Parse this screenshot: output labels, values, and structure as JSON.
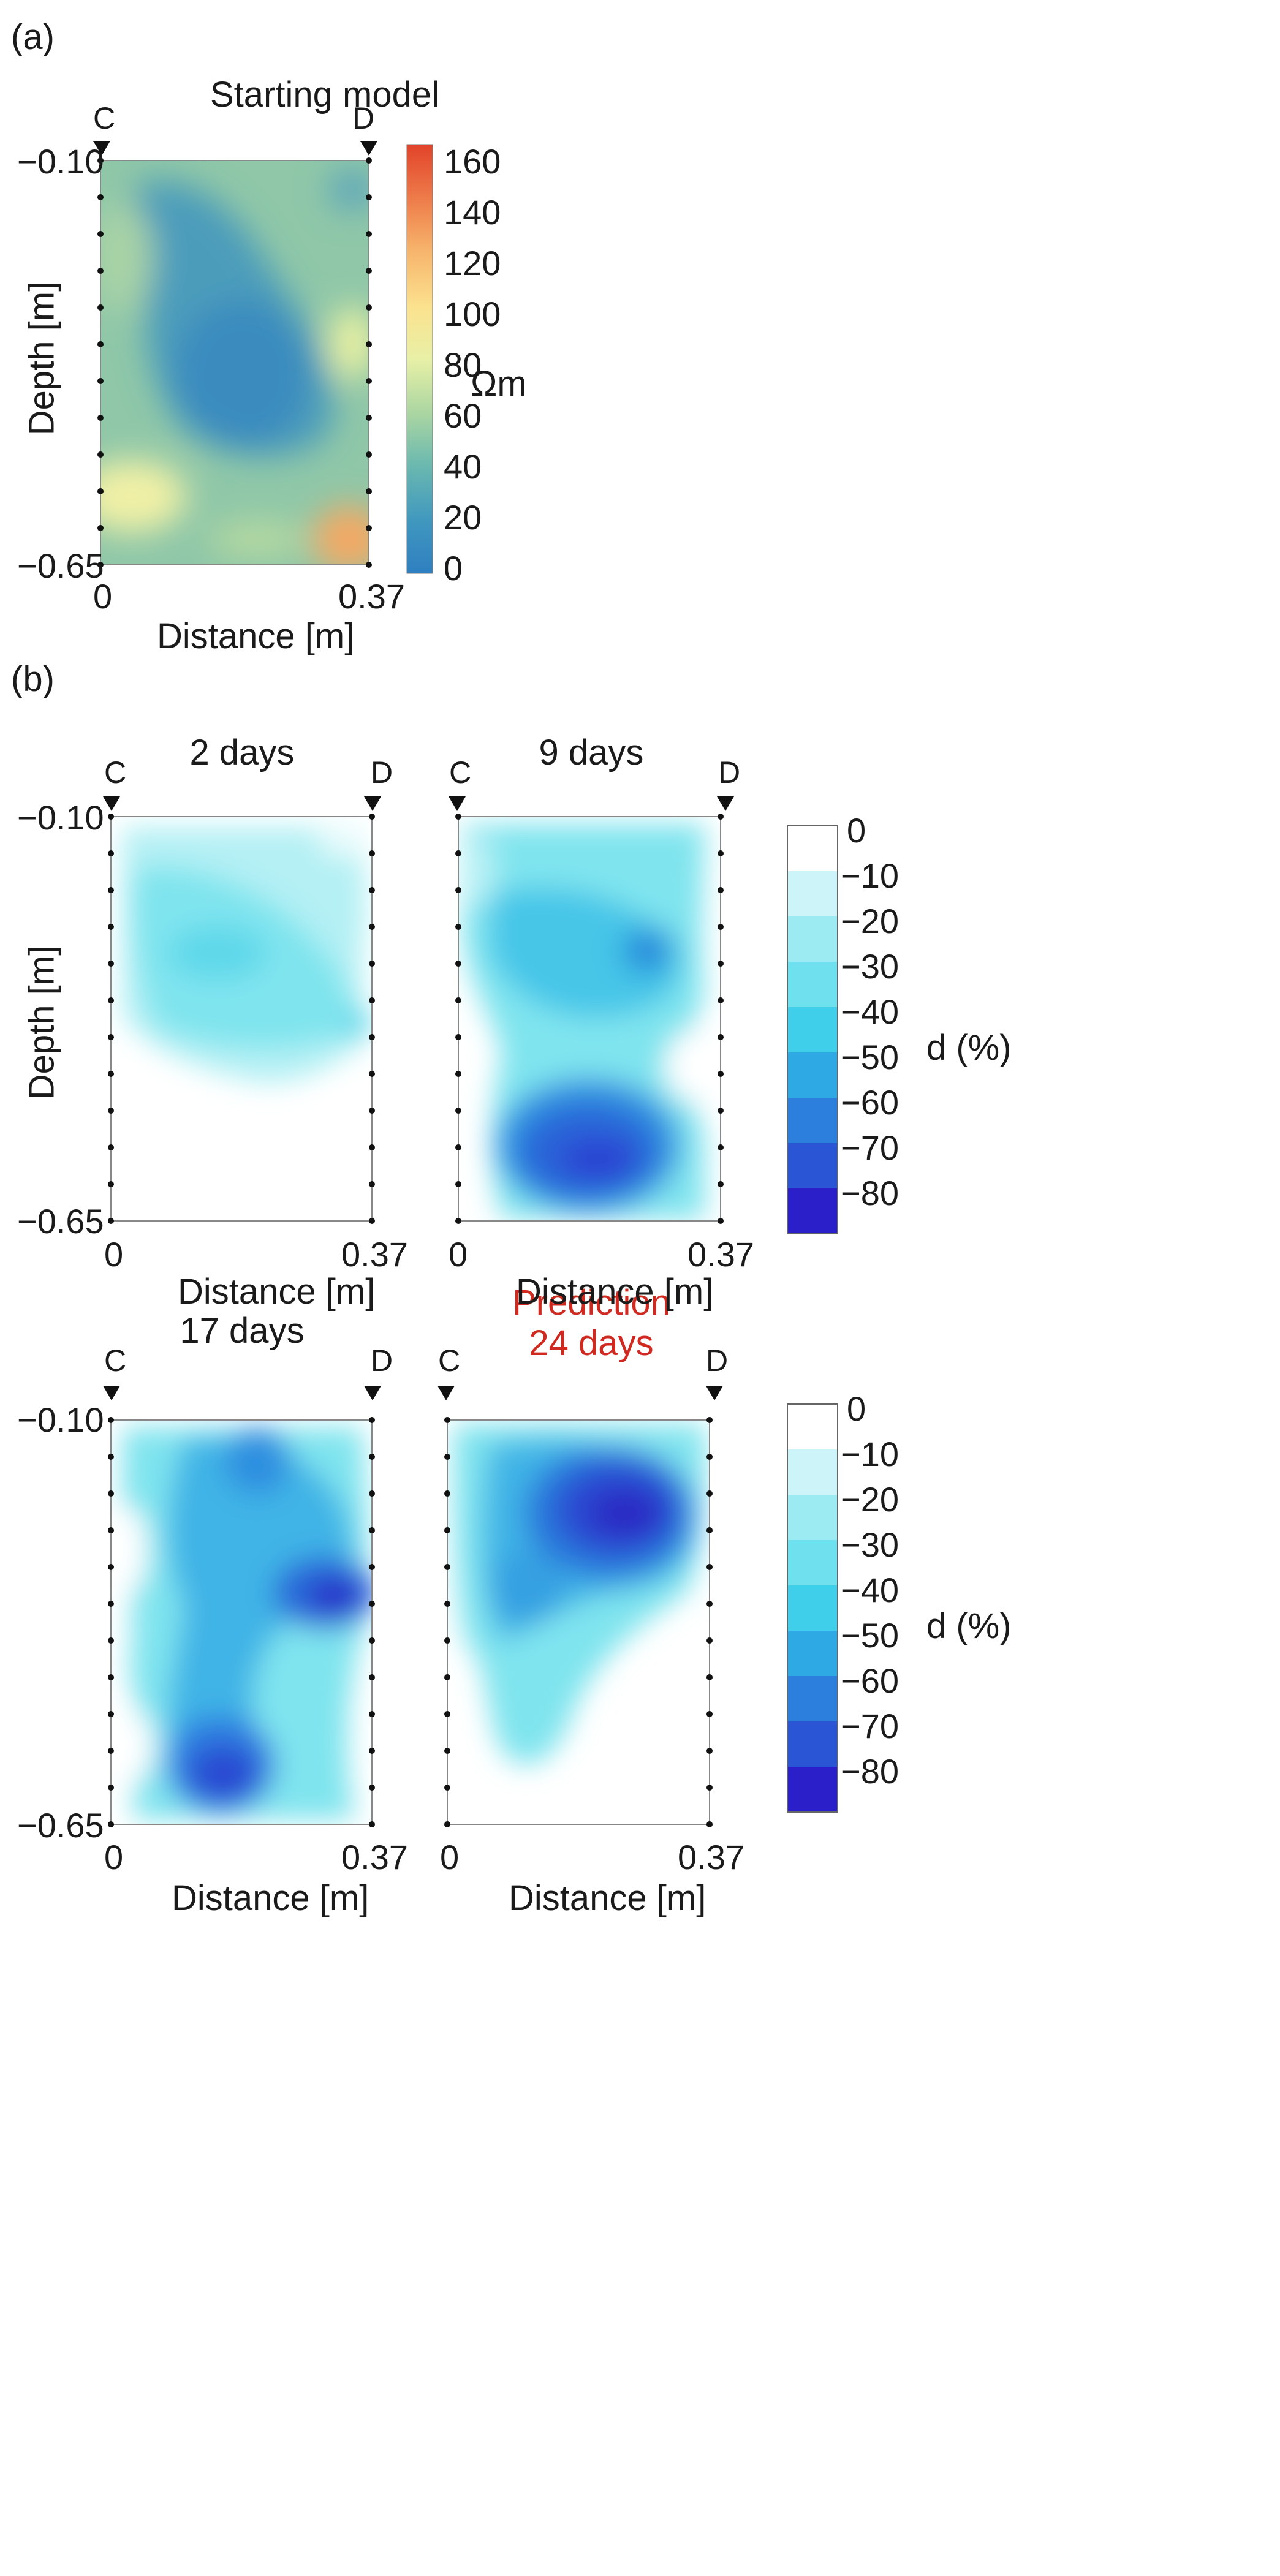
{
  "panels": {
    "a": {
      "letter": "(a)",
      "title": "Starting model",
      "electrode_left": "C",
      "electrode_right": "D",
      "y_top": "−0.10",
      "y_bottom": "−0.65",
      "x_left": "0",
      "x_right": "0.37",
      "xlabel": "Distance [m]",
      "ylabel": "Depth [m]"
    },
    "b": {
      "letter": "(b)",
      "subplots": [
        {
          "title": "2 days",
          "electrode_left": "C",
          "electrode_right": "D",
          "y_top": "−0.10",
          "y_bottom": "−0.65",
          "x_left": "0",
          "x_right": "0.37",
          "xlabel": "Distance [m]",
          "ylabel": "Depth [m]"
        },
        {
          "title": "9 days",
          "electrode_left": "C",
          "electrode_right": "D",
          "x_left": "0",
          "x_right": "0.37",
          "xlabel": "Distance [m]"
        },
        {
          "title": "17 days",
          "electrode_left": "C",
          "electrode_right": "D",
          "y_top": "−0.10",
          "y_bottom": "−0.65",
          "x_left": "0",
          "x_right": "0.37",
          "xlabel": "Distance [m]"
        },
        {
          "title_line1": "Prediction",
          "title_line2": "24 days",
          "electrode_left": "C",
          "electrode_right": "D",
          "x_left": "0",
          "x_right": "0.37",
          "xlabel": "Distance [m]"
        }
      ]
    }
  },
  "colorbar_resistivity": {
    "unit": "Ωm",
    "ticks": [
      "160",
      "140",
      "120",
      "100",
      "80",
      "60",
      "40",
      "20",
      "0"
    ]
  },
  "colorbar_change": {
    "unit": "d (%)",
    "ticks": [
      "0",
      "−10",
      "−20",
      "−30",
      "−40",
      "−50",
      "−60",
      "−70",
      "−80"
    ]
  },
  "colors": {
    "resistivity_low": "#2f7fc0",
    "resistivity_mid": "#f3efa6",
    "resistivity_high": "#e2432a",
    "change_zero": "#ffffff",
    "change_min": "#2a0fd0",
    "prediction_text": "#d02a20"
  },
  "chart_data": [
    {
      "type": "heatmap",
      "title": "Starting model",
      "xlabel": "Distance [m]",
      "ylabel": "Depth [m]",
      "xlim": [
        0,
        0.37
      ],
      "ylim": [
        -0.65,
        -0.1
      ],
      "colorbar": {
        "label": "Ωm",
        "range": [
          0,
          160
        ]
      },
      "features": [
        {
          "x": 0.2,
          "y": -0.33,
          "value": 8
        },
        {
          "x": 0.12,
          "y": -0.2,
          "value": 20
        },
        {
          "x": 0.34,
          "y": -0.13,
          "value": 15
        },
        {
          "x": 0.03,
          "y": -0.58,
          "value": 85
        },
        {
          "x": 0.34,
          "y": -0.3,
          "value": 80
        },
        {
          "x": 0.35,
          "y": -0.62,
          "value": 130
        }
      ]
    },
    {
      "type": "heatmap",
      "title": "2 days",
      "xlabel": "Distance [m]",
      "ylabel": "Depth [m]",
      "xlim": [
        0,
        0.37
      ],
      "ylim": [
        -0.65,
        -0.1
      ],
      "colorbar": {
        "label": "d (%)",
        "range": [
          -80,
          0
        ]
      },
      "features": [
        {
          "x": 0.15,
          "y": -0.35,
          "value": -35
        },
        {
          "x": 0.18,
          "y": -0.28,
          "value": -30
        },
        {
          "x": 0.34,
          "y": -0.44,
          "value": -35
        },
        {
          "x": 0.3,
          "y": -0.6,
          "value": 0
        }
      ]
    },
    {
      "type": "heatmap",
      "title": "9 days",
      "xlabel": "Distance [m]",
      "xlim": [
        0,
        0.37
      ],
      "ylim": [
        -0.65,
        -0.1
      ],
      "colorbar": {
        "label": "d (%)",
        "range": [
          -80,
          0
        ]
      },
      "features": [
        {
          "x": 0.29,
          "y": -0.33,
          "value": -55
        },
        {
          "x": 0.2,
          "y": -0.58,
          "value": -72
        },
        {
          "x": 0.08,
          "y": -0.3,
          "value": -35
        },
        {
          "x": 0.34,
          "y": -0.47,
          "value": 0
        }
      ]
    },
    {
      "type": "heatmap",
      "title": "17 days",
      "xlabel": "Distance [m]",
      "xlim": [
        0,
        0.37
      ],
      "ylim": [
        -0.65,
        -0.1
      ],
      "colorbar": {
        "label": "d (%)",
        "range": [
          -80,
          0
        ]
      },
      "features": [
        {
          "x": 0.3,
          "y": -0.3,
          "value": -78
        },
        {
          "x": 0.15,
          "y": -0.58,
          "value": -72
        },
        {
          "x": 0.2,
          "y": -0.15,
          "value": -55
        },
        {
          "x": 0.04,
          "y": -0.55,
          "value": 0
        }
      ]
    },
    {
      "type": "heatmap",
      "title": "Prediction 24 days",
      "xlabel": "Distance [m]",
      "xlim": [
        0,
        0.37
      ],
      "ylim": [
        -0.65,
        -0.1
      ],
      "colorbar": {
        "label": "d (%)",
        "range": [
          -80,
          0
        ]
      },
      "features": [
        {
          "x": 0.24,
          "y": -0.22,
          "value": -80
        },
        {
          "x": 0.12,
          "y": -0.38,
          "value": -55
        },
        {
          "x": 0.3,
          "y": -0.55,
          "value": 0
        }
      ]
    }
  ]
}
